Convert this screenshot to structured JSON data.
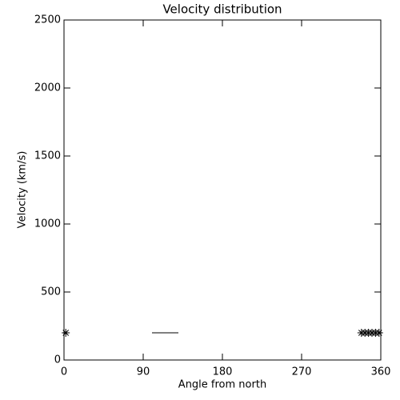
{
  "chart_data": {
    "type": "scatter",
    "title": "Velocity distribution",
    "x_label": "Angle from north",
    "y_label": "Velocity (km/s)",
    "xlim": [
      0,
      360
    ],
    "xticks": [
      0,
      90,
      180,
      270,
      360
    ],
    "ylim": [
      0,
      2500
    ],
    "yticks": [
      0,
      500,
      1000,
      1500,
      2000,
      2500
    ],
    "series": [
      {
        "style": "asterisk",
        "color": "#000000",
        "x": [
          2,
          338,
          342,
          346,
          350,
          354,
          358
        ],
        "values": [
          200,
          200,
          200,
          200,
          200,
          200,
          200
        ]
      },
      {
        "style": "line",
        "color": "#000000",
        "x": [
          100,
          130
        ],
        "values": [
          200,
          200
        ]
      }
    ]
  }
}
